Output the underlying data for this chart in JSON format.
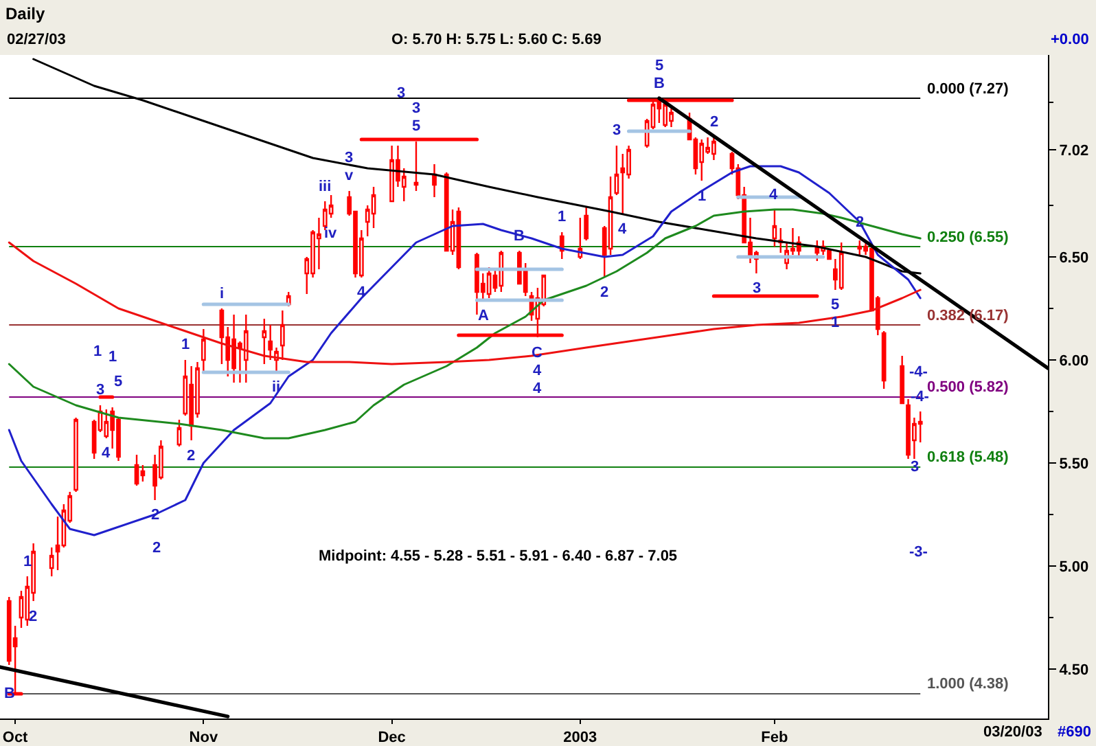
{
  "chart_data": {
    "type": "candlestick",
    "title": "Daily",
    "color": "#ff0000",
    "x": [
      "2002-09-30",
      "2002-10-01",
      "2002-10-02",
      "2002-10-03",
      "2002-10-04",
      "2002-10-07",
      "2002-10-08",
      "2002-10-09",
      "2002-10-10",
      "2002-10-11",
      "2002-10-14",
      "2002-10-15",
      "2002-10-16",
      "2002-10-17",
      "2002-10-18",
      "2002-10-21",
      "2002-10-22",
      "2002-10-24",
      "2002-10-25",
      "2002-10-28",
      "2002-10-29",
      "2002-10-30",
      "2002-10-31",
      "2002-11-01",
      "2002-11-04",
      "2002-11-05",
      "2002-11-06",
      "2002-11-07",
      "2002-11-08",
      "2002-11-11",
      "2002-11-12",
      "2002-11-13",
      "2002-11-14",
      "2002-11-15",
      "2002-11-18",
      "2002-11-19",
      "2002-11-20",
      "2002-11-21",
      "2002-11-22",
      "2002-11-25",
      "2002-11-26",
      "2002-11-27",
      "2002-11-28",
      "2002-11-29",
      "2002-12-02",
      "2002-12-03",
      "2002-12-04",
      "2002-12-06",
      "2002-12-09",
      "2002-12-11",
      "2002-12-12",
      "2002-12-13",
      "2002-12-16",
      "2002-12-17",
      "2002-12-18",
      "2002-12-19",
      "2002-12-20",
      "2002-12-23",
      "2002-12-24",
      "2002-12-25",
      "2002-12-26",
      "2002-12-27",
      "2002-12-30",
      "2003-01-02",
      "2003-01-03",
      "2003-01-06",
      "2003-01-07",
      "2003-01-08",
      "2003-01-09",
      "2003-01-10",
      "2003-01-13",
      "2003-01-14",
      "2003-01-15",
      "2003-01-16",
      "2003-01-17",
      "2003-01-20",
      "2003-01-21",
      "2003-01-22",
      "2003-01-23",
      "2003-01-24",
      "2003-01-27",
      "2003-01-28",
      "2003-01-29",
      "2003-01-30",
      "2003-01-31",
      "2003-02-03",
      "2003-02-04",
      "2003-02-05",
      "2003-02-06",
      "2003-02-07",
      "2003-02-10",
      "2003-02-11",
      "2003-02-12",
      "2003-02-13",
      "2003-02-14",
      "2003-02-17",
      "2003-02-18",
      "2003-02-19",
      "2003-02-20",
      "2003-02-21",
      "2003-02-24",
      "2003-02-25",
      "2003-02-26",
      "2003-02-27"
    ],
    "ohlc": [
      [
        4.83,
        4.85,
        4.52,
        4.54
      ],
      [
        4.65,
        4.71,
        4.38,
        4.61
      ],
      [
        4.75,
        4.88,
        4.7,
        4.85
      ],
      [
        4.74,
        4.95,
        4.71,
        4.9
      ],
      [
        4.87,
        5.11,
        4.83,
        5.07
      ],
      [
        4.99,
        5.09,
        4.95,
        5.05
      ],
      [
        5.1,
        5.24,
        4.98,
        5.07
      ],
      [
        5.1,
        5.3,
        5.09,
        5.27
      ],
      [
        5.22,
        5.36,
        5.21,
        5.34
      ],
      [
        5.37,
        5.72,
        5.36,
        5.71
      ],
      [
        5.7,
        5.71,
        5.52,
        5.55
      ],
      [
        5.66,
        5.78,
        5.65,
        5.75
      ],
      [
        5.63,
        5.76,
        5.62,
        5.7
      ],
      [
        5.75,
        5.77,
        5.57,
        5.66
      ],
      [
        5.71,
        5.72,
        5.51,
        5.53
      ],
      [
        5.49,
        5.54,
        5.39,
        5.4
      ],
      [
        5.46,
        5.49,
        5.41,
        5.44
      ],
      [
        5.49,
        5.54,
        5.32,
        5.39
      ],
      [
        5.43,
        5.61,
        5.42,
        5.58
      ],
      [
        5.59,
        5.71,
        5.58,
        5.67
      ],
      [
        5.74,
        6.0,
        5.73,
        5.92
      ],
      [
        5.88,
        5.97,
        5.61,
        5.68
      ],
      [
        5.74,
        5.99,
        5.72,
        5.96
      ],
      [
        6.0,
        6.15,
        5.94,
        6.1
      ],
      [
        6.24,
        6.25,
        5.98,
        6.11
      ],
      [
        6.11,
        6.16,
        5.92,
        6.0
      ],
      [
        6.1,
        6.22,
        5.89,
        5.96
      ],
      [
        6.08,
        6.09,
        5.89,
        6.06
      ],
      [
        6.0,
        6.22,
        5.89,
        6.14
      ],
      [
        6.11,
        6.2,
        5.98,
        6.14
      ],
      [
        6.09,
        6.17,
        6.0,
        6.05
      ],
      [
        6.0,
        6.06,
        5.94,
        6.04
      ],
      [
        6.07,
        6.24,
        6.0,
        6.17
      ],
      [
        6.27,
        6.33,
        6.26,
        6.31
      ],
      [
        6.42,
        6.5,
        6.32,
        6.49
      ],
      [
        6.42,
        6.63,
        6.4,
        6.62
      ],
      [
        6.59,
        6.69,
        6.44,
        6.61
      ],
      [
        6.65,
        6.77,
        6.63,
        6.73
      ],
      [
        6.71,
        6.8,
        6.69,
        6.75
      ],
      [
        6.79,
        6.82,
        6.7,
        6.71
      ],
      [
        6.72,
        6.72,
        6.4,
        6.42
      ],
      [
        6.41,
        6.63,
        6.4,
        6.59
      ],
      [
        6.67,
        6.75,
        6.6,
        6.73
      ],
      [
        6.71,
        6.84,
        6.64,
        6.8
      ],
      [
        6.77,
        7.04,
        6.77,
        6.97
      ],
      [
        6.97,
        7.04,
        6.84,
        6.87
      ],
      [
        6.84,
        6.93,
        6.77,
        6.89
      ],
      [
        6.85,
        7.06,
        6.82,
        6.86
      ],
      [
        6.9,
        6.95,
        6.79,
        6.85
      ],
      [
        6.9,
        6.91,
        6.53,
        6.53
      ],
      [
        6.53,
        6.73,
        6.51,
        6.67
      ],
      [
        6.72,
        6.74,
        6.44,
        6.45
      ],
      [
        6.51,
        6.52,
        6.22,
        6.33
      ],
      [
        6.37,
        6.42,
        6.29,
        6.33
      ],
      [
        6.32,
        6.45,
        6.3,
        6.42
      ],
      [
        6.41,
        6.44,
        6.33,
        6.35
      ],
      [
        6.36,
        6.53,
        6.33,
        6.52
      ],
      [
        6.52,
        6.53,
        6.37,
        6.37
      ],
      [
        6.44,
        6.47,
        6.31,
        6.33
      ],
      [
        6.31,
        6.33,
        6.19,
        6.22
      ],
      [
        6.2,
        6.35,
        6.11,
        6.3
      ],
      [
        6.27,
        6.41,
        6.26,
        6.41
      ],
      [
        6.6,
        6.62,
        6.49,
        6.53
      ],
      [
        6.5,
        6.69,
        6.49,
        6.54
      ],
      [
        6.7,
        6.74,
        6.58,
        6.59
      ],
      [
        6.64,
        6.65,
        6.4,
        6.51
      ],
      [
        6.54,
        6.89,
        6.51,
        6.79
      ],
      [
        6.81,
        7.04,
        6.8,
        6.9
      ],
      [
        6.93,
        7.0,
        6.71,
        6.91
      ],
      [
        6.9,
        7.04,
        6.88,
        7.02
      ],
      [
        7.04,
        7.17,
        7.03,
        7.16
      ],
      [
        7.13,
        7.26,
        7.12,
        7.24
      ],
      [
        7.25,
        7.27,
        7.15,
        7.22
      ],
      [
        7.14,
        7.25,
        7.13,
        7.24
      ],
      [
        7.16,
        7.22,
        7.13,
        7.2
      ],
      [
        7.17,
        7.2,
        7.07,
        7.07
      ],
      [
        7.07,
        7.08,
        6.9,
        6.93
      ],
      [
        6.96,
        7.07,
        6.87,
        7.05
      ],
      [
        7.01,
        7.08,
        7.0,
        7.03
      ],
      [
        7.0,
        7.08,
        6.97,
        7.06
      ],
      [
        7.0,
        7.01,
        6.9,
        6.93
      ],
      [
        6.93,
        6.95,
        6.78,
        6.8
      ],
      [
        6.8,
        6.84,
        6.57,
        6.57
      ],
      [
        6.57,
        6.69,
        6.47,
        6.51
      ],
      [
        6.49,
        6.53,
        6.42,
        6.52
      ],
      [
        6.59,
        6.73,
        6.55,
        6.65
      ],
      [
        6.58,
        6.64,
        6.52,
        6.57
      ],
      [
        6.47,
        6.57,
        6.44,
        6.53
      ],
      [
        6.54,
        6.64,
        6.51,
        6.53
      ],
      [
        6.57,
        6.6,
        6.5,
        6.53
      ],
      [
        6.55,
        6.58,
        6.48,
        6.52
      ],
      [
        6.53,
        6.58,
        6.51,
        6.55
      ],
      [
        6.53,
        6.54,
        6.49,
        6.49
      ],
      [
        6.44,
        6.49,
        6.34,
        6.39
      ],
      [
        6.35,
        6.57,
        6.34,
        6.52
      ],
      [
        6.55,
        6.58,
        6.51,
        6.54
      ],
      [
        6.55,
        6.58,
        6.51,
        6.53
      ],
      [
        6.54,
        6.56,
        6.24,
        6.24
      ],
      [
        6.3,
        6.31,
        6.12,
        6.15
      ],
      [
        6.13,
        6.14,
        5.86,
        5.9
      ],
      [
        5.97,
        6.02,
        5.79,
        5.79
      ],
      [
        5.78,
        5.81,
        5.52,
        5.54
      ],
      [
        5.61,
        5.72,
        5.52,
        5.69
      ],
      [
        5.7,
        5.75,
        5.6,
        5.69
      ]
    ],
    "xlim": [
      "2002-09-28T12:00",
      "2003-03-20"
    ],
    "xticks": [
      {
        "value": "2002-10-01",
        "label": "Oct"
      },
      {
        "value": "2002-11-01",
        "label": "Nov"
      },
      {
        "value": "2002-12-02",
        "label": "Dec"
      },
      {
        "value": "2003-01-02",
        "label": "2003"
      },
      {
        "value": "2003-02-03",
        "label": "Feb"
      }
    ],
    "ylim": [
      4.26,
      7.48
    ],
    "yticks": [
      {
        "value": 4.5,
        "label": "4.50"
      },
      {
        "value": 4.75,
        "label": null
      },
      {
        "value": 5.0,
        "label": "5.00"
      },
      {
        "value": 5.25,
        "label": null
      },
      {
        "value": 5.5,
        "label": "5.50"
      },
      {
        "value": 5.75,
        "label": null
      },
      {
        "value": 6.0,
        "label": "6.00"
      },
      {
        "value": 6.25,
        "label": null
      },
      {
        "value": 6.5,
        "label": "6.50"
      },
      {
        "value": 6.75,
        "label": null
      },
      {
        "value": 7.02,
        "label": "7.02"
      },
      {
        "value": 7.25,
        "label": null
      }
    ],
    "series": [
      {
        "type": "line",
        "color": "#000000",
        "x": [
          "2002-10-04",
          "2002-10-14",
          "2002-10-22",
          "2002-10-31",
          "2002-11-08",
          "2002-11-19",
          "2002-11-28",
          "2002-12-09",
          "2002-12-18",
          "2002-12-26",
          "2003-01-07",
          "2003-01-15",
          "2003-01-23",
          "2003-01-31",
          "2003-02-10",
          "2003-02-18",
          "2003-02-24",
          "2003-02-27"
        ],
        "values": [
          7.46,
          7.33,
          7.26,
          7.17,
          7.09,
          6.98,
          6.93,
          6.9,
          6.84,
          6.79,
          6.72,
          6.67,
          6.63,
          6.59,
          6.55,
          6.5,
          6.43,
          6.42
        ]
      },
      {
        "type": "line",
        "color": "#2020cc",
        "x": [
          "2002-09-30",
          "2002-10-02",
          "2002-10-07",
          "2002-10-10",
          "2002-10-14",
          "2002-10-17",
          "2002-10-22",
          "2002-10-24",
          "2002-10-29",
          "2002-11-01",
          "2002-11-06",
          "2002-11-12",
          "2002-11-15",
          "2002-11-19",
          "2002-11-22",
          "2002-11-27",
          "2002-12-02",
          "2002-12-06",
          "2002-12-12",
          "2002-12-17",
          "2002-12-20",
          "2002-12-25",
          "2002-12-30",
          "2003-01-06",
          "2003-01-09",
          "2003-01-14",
          "2003-01-17",
          "2003-01-22",
          "2003-01-27",
          "2003-01-30",
          "2003-02-04",
          "2003-02-07",
          "2003-02-12",
          "2003-02-17",
          "2003-02-20",
          "2003-02-25",
          "2003-02-27"
        ],
        "values": [
          5.66,
          5.51,
          5.3,
          5.18,
          5.15,
          5.18,
          5.23,
          5.25,
          5.32,
          5.5,
          5.66,
          5.79,
          5.92,
          6.0,
          6.13,
          6.3,
          6.45,
          6.57,
          6.65,
          6.66,
          6.63,
          6.59,
          6.54,
          6.5,
          6.51,
          6.6,
          6.72,
          6.82,
          6.91,
          6.94,
          6.94,
          6.91,
          6.81,
          6.67,
          6.51,
          6.39,
          6.3
        ]
      },
      {
        "type": "line",
        "color": "#1e8a1e",
        "x": [
          "2002-09-30",
          "2002-10-04",
          "2002-10-11",
          "2002-10-18",
          "2002-10-28",
          "2002-11-04",
          "2002-11-11",
          "2002-11-15",
          "2002-11-21",
          "2002-11-26",
          "2002-11-29",
          "2002-12-04",
          "2002-12-11",
          "2002-12-16",
          "2002-12-19",
          "2002-12-24",
          "2002-12-27",
          "2003-01-03",
          "2003-01-08",
          "2003-01-13",
          "2003-01-16",
          "2003-01-21",
          "2003-01-24",
          "2003-01-29",
          "2003-02-03",
          "2003-02-06",
          "2003-02-11",
          "2003-02-14",
          "2003-02-19",
          "2003-02-24",
          "2003-02-27"
        ],
        "values": [
          5.98,
          5.87,
          5.78,
          5.72,
          5.69,
          5.66,
          5.62,
          5.62,
          5.66,
          5.7,
          5.78,
          5.88,
          5.97,
          6.06,
          6.13,
          6.21,
          6.29,
          6.36,
          6.43,
          6.52,
          6.59,
          6.65,
          6.7,
          6.72,
          6.73,
          6.73,
          6.71,
          6.69,
          6.65,
          6.61,
          6.59
        ]
      },
      {
        "type": "line",
        "color": "#ee1111",
        "x": [
          "2002-09-30",
          "2002-10-04",
          "2002-10-11",
          "2002-10-18",
          "2002-10-28",
          "2002-11-04",
          "2002-11-11",
          "2002-11-18",
          "2002-11-25",
          "2002-12-02",
          "2002-12-11",
          "2002-12-18",
          "2002-12-25",
          "2003-01-03",
          "2003-01-10",
          "2003-01-17",
          "2003-01-24",
          "2003-01-31",
          "2003-02-07",
          "2003-02-14",
          "2003-02-19",
          "2003-02-24",
          "2003-02-27"
        ],
        "values": [
          6.57,
          6.48,
          6.37,
          6.25,
          6.15,
          6.08,
          6.02,
          5.99,
          5.99,
          5.98,
          5.99,
          6.0,
          6.02,
          6.06,
          6.09,
          6.12,
          6.15,
          6.17,
          6.18,
          6.21,
          6.24,
          6.3,
          6.34
        ]
      },
      {
        "type": "line",
        "color": "#a4c4e4",
        "x": [
          "2002-11-01",
          "2002-11-15"
        ],
        "values": [
          6.27,
          6.27
        ]
      },
      {
        "type": "line",
        "color": "#a4c4e4",
        "x": [
          "2002-11-01",
          "2002-11-15"
        ],
        "values": [
          5.94,
          5.94
        ]
      },
      {
        "type": "line",
        "color": "#a4c4e4",
        "x": [
          "2002-12-16",
          "2002-12-30"
        ],
        "values": [
          6.44,
          6.44
        ]
      },
      {
        "type": "line",
        "color": "#a4c4e4",
        "x": [
          "2002-12-16",
          "2002-12-30"
        ],
        "values": [
          6.29,
          6.29
        ]
      },
      {
        "type": "line",
        "color": "#a4c4e4",
        "x": [
          "2003-01-10",
          "2003-01-20"
        ],
        "values": [
          7.11,
          7.11
        ]
      },
      {
        "type": "line",
        "color": "#a4c4e4",
        "x": [
          "2003-01-28",
          "2003-02-07"
        ],
        "values": [
          6.79,
          6.79
        ]
      },
      {
        "type": "line",
        "color": "#a4c4e4",
        "x": [
          "2003-01-28",
          "2003-02-11"
        ],
        "values": [
          6.5,
          6.5
        ]
      },
      {
        "type": "line",
        "color": "#ff0000",
        "x": [
          "2002-11-27",
          "2002-12-16"
        ],
        "values": [
          7.07,
          7.07
        ]
      },
      {
        "type": "line",
        "color": "#ff0000",
        "x": [
          "2002-12-13",
          "2002-12-30"
        ],
        "values": [
          6.12,
          6.12
        ]
      },
      {
        "type": "line",
        "color": "#ff0000",
        "x": [
          "2003-01-10",
          "2003-01-27"
        ],
        "values": [
          7.26,
          7.26
        ]
      },
      {
        "type": "line",
        "color": "#ff0000",
        "x": [
          "2003-01-24",
          "2003-02-10"
        ],
        "values": [
          6.31,
          6.31
        ]
      },
      {
        "type": "line",
        "color": "#ff0000",
        "x": [
          "2002-10-15",
          "2002-10-17"
        ],
        "values": [
          5.82,
          5.82
        ]
      },
      {
        "type": "line",
        "color": "#ff0000",
        "x": [
          "2002-09-30",
          "2002-10-02"
        ],
        "values": [
          4.38,
          4.38
        ]
      },
      {
        "type": "line",
        "color": "#000000",
        "x": [
          "2003-01-15",
          "2003-03-20"
        ],
        "values": [
          7.27,
          5.96
        ]
      },
      {
        "type": "line",
        "color": "#000000",
        "x": [
          "2002-09-28T12:00",
          "2002-11-05"
        ],
        "values": [
          4.51,
          4.27
        ]
      }
    ],
    "ref_lines": [
      {
        "axis": "y",
        "value": 7.27,
        "label": "0.000 (7.27)",
        "color": "#000000"
      },
      {
        "axis": "y",
        "value": 6.55,
        "label": "0.250 (6.55)",
        "color": "#108010"
      },
      {
        "axis": "y",
        "value": 6.17,
        "label": "0.382 (6.17)",
        "color": "#993333"
      },
      {
        "axis": "y",
        "value": 5.82,
        "label": "0.500 (5.82)",
        "color": "#800080"
      },
      {
        "axis": "y",
        "value": 5.48,
        "label": "0.618 (5.48)",
        "color": "#108010"
      },
      {
        "axis": "y",
        "value": 4.38,
        "label": "1.000 (4.38)",
        "color": "#555555"
      }
    ],
    "annotations": [
      "02/27/03",
      "O: 5.70 H: 5.75 L: 5.60 C: 5.69",
      "+0.00",
      "Midpoint: 4.55 - 5.28 - 5.51 - 5.91 - 6.40 - 6.87 - 7.05",
      "03/20/03",
      "#690",
      "1",
      "1",
      "5",
      "2",
      "3",
      "-4-",
      "-3-",
      {
        "text": "1",
        "x": "2002-10-03",
        "y": 4.95
      },
      {
        "text": "2",
        "x": "2002-10-04",
        "y": 4.83
      },
      {
        "text": "3",
        "x": "2002-10-15",
        "y": 5.78
      },
      {
        "text": "4",
        "x": "2002-10-16",
        "y": 5.62
      },
      {
        "text": "1",
        "x": "2002-10-29",
        "y": 6.0
      },
      {
        "text": "2",
        "x": "2002-10-30",
        "y": 5.61
      },
      {
        "text": "2",
        "x": "2002-10-24",
        "y": 5.25
      },
      {
        "text": "i",
        "x": "2002-11-04",
        "y": 6.25
      },
      {
        "text": "ii",
        "x": "2002-11-13",
        "y": 5.94
      },
      {
        "text": "iii",
        "x": "2002-11-21",
        "y": 6.77
      },
      {
        "text": "iv",
        "x": "2002-11-22",
        "y": 6.69
      },
      {
        "text": "v",
        "x": "2002-11-25",
        "y": 6.82
      },
      {
        "text": "3",
        "x": "2002-11-25",
        "y": 6.82
      },
      {
        "text": "4",
        "x": "2002-11-27",
        "y": 6.4
      },
      {
        "text": "5",
        "x": "2002-12-06",
        "y": 7.06
      },
      {
        "text": "3",
        "x": "2002-12-06",
        "y": 7.06
      },
      {
        "text": "A",
        "x": "2002-12-17",
        "y": 6.29
      },
      {
        "text": "B",
        "x": "2002-12-23",
        "y": 6.53
      },
      {
        "text": "C",
        "x": "2002-12-26",
        "y": 6.11
      },
      {
        "text": "4",
        "x": "2002-12-26",
        "y": 6.11
      },
      {
        "text": "4",
        "x": "2002-12-26",
        "y": 6.11
      },
      {
        "text": "1",
        "x": "2002-12-30",
        "y": 6.62
      },
      {
        "text": "2",
        "x": "2003-01-06",
        "y": 6.4
      },
      {
        "text": "3",
        "x": "2003-01-08",
        "y": 7.04
      },
      {
        "text": "4",
        "x": "2003-01-09",
        "y": 6.71
      },
      {
        "text": "B",
        "x": "2003-01-15",
        "y": 7.27
      },
      {
        "text": "5",
        "x": "2003-01-15",
        "y": 7.27
      },
      {
        "text": "1",
        "x": "2003-01-22",
        "y": 6.87
      },
      {
        "text": "2",
        "x": "2003-01-24",
        "y": 7.08
      },
      {
        "text": "3",
        "x": "2003-01-31",
        "y": 6.42
      },
      {
        "text": "4",
        "x": "2003-02-03",
        "y": 6.73
      },
      {
        "text": "5",
        "x": "2003-02-13",
        "y": 6.34
      },
      {
        "text": "1",
        "x": "2003-02-13",
        "y": 6.34
      },
      {
        "text": "2",
        "x": "2003-02-17",
        "y": 6.67
      },
      {
        "text": "-4-",
        "x": "2003-02-27",
        "y": 5.82
      },
      {
        "text": "3",
        "x": "2003-02-26",
        "y": 5.48
      },
      {
        "text": "B",
        "x": "2002-09-30",
        "y": 4.38
      }
    ]
  }
}
